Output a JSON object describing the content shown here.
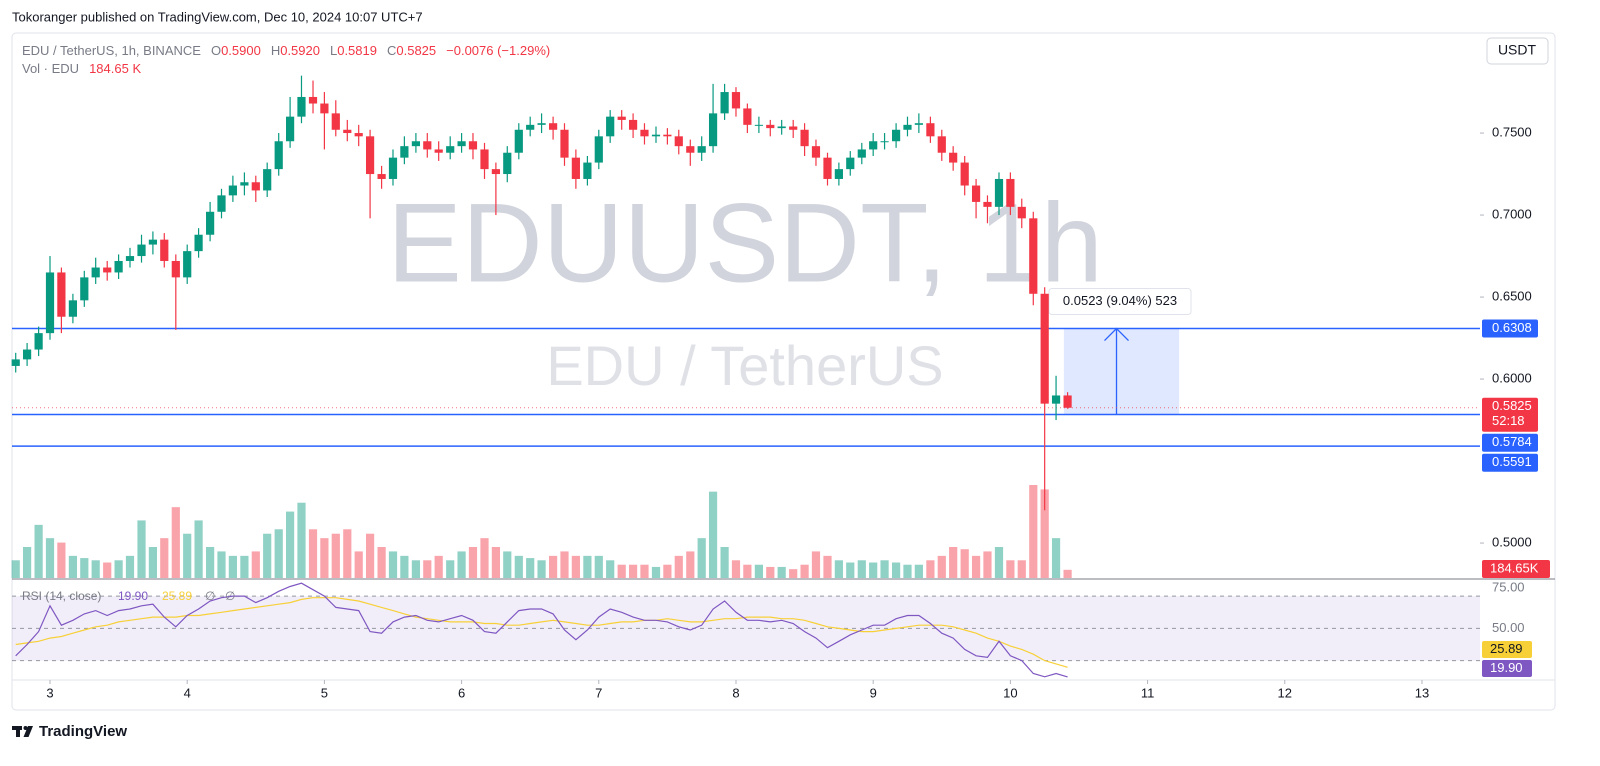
{
  "chart_data": {
    "type": "candlestick",
    "publisher_note": "Tokoranger published on TradingView.com, Dec 10, 2024 10:07 UTC+7",
    "brand": "TradingView",
    "currency_button": "USDT",
    "legend": {
      "symbol": "EDU / TetherUS, 1h, BINANCE",
      "items": [
        {
          "label": "O",
          "value": "0.5900"
        },
        {
          "label": "H",
          "value": "0.5920"
        },
        {
          "label": "L",
          "value": "0.5819"
        },
        {
          "label": "C",
          "value": "0.5825"
        }
      ],
      "change": "−0.0076 (−1.29%)"
    },
    "volume_legend": {
      "label": "Vol · EDU",
      "value": "184.65 K"
    },
    "watermark": {
      "title": "EDUUSDT, 1h",
      "subtitle": "EDU / TetherUS"
    },
    "x": [
      2.75,
      2.833,
      2.917,
      3,
      3.083,
      3.167,
      3.25,
      3.333,
      3.417,
      3.5,
      3.583,
      3.667,
      3.75,
      3.833,
      3.917,
      4,
      4.083,
      4.167,
      4.25,
      4.333,
      4.417,
      4.5,
      4.583,
      4.667,
      4.75,
      4.833,
      4.917,
      5,
      5.083,
      5.167,
      5.25,
      5.333,
      5.417,
      5.5,
      5.583,
      5.667,
      5.75,
      5.833,
      5.917,
      6,
      6.083,
      6.167,
      6.25,
      6.333,
      6.417,
      6.5,
      6.583,
      6.667,
      6.75,
      6.833,
      6.917,
      7,
      7.083,
      7.167,
      7.25,
      7.333,
      7.417,
      7.5,
      7.583,
      7.667,
      7.75,
      7.833,
      7.917,
      8,
      8.083,
      8.167,
      8.25,
      8.333,
      8.417,
      8.5,
      8.583,
      8.667,
      8.75,
      8.833,
      8.917,
      9,
      9.083,
      9.167,
      9.25,
      9.333,
      9.417,
      9.5,
      9.583,
      9.667,
      9.75,
      9.833,
      9.917,
      10,
      10.083,
      10.167,
      10.25,
      10.333,
      10.417
    ],
    "open": [
      0.608,
      0.612,
      0.618,
      0.628,
      0.665,
      0.638,
      0.648,
      0.662,
      0.668,
      0.665,
      0.672,
      0.675,
      0.682,
      0.685,
      0.672,
      0.662,
      0.678,
      0.688,
      0.702,
      0.712,
      0.718,
      0.72,
      0.715,
      0.728,
      0.745,
      0.76,
      0.772,
      0.768,
      0.762,
      0.752,
      0.75,
      0.748,
      0.725,
      0.722,
      0.735,
      0.742,
      0.745,
      0.74,
      0.738,
      0.742,
      0.745,
      0.74,
      0.728,
      0.725,
      0.738,
      0.752,
      0.755,
      0.756,
      0.752,
      0.735,
      0.722,
      0.732,
      0.748,
      0.76,
      0.758,
      0.752,
      0.748,
      0.749,
      0.748,
      0.742,
      0.738,
      0.742,
      0.762,
      0.775,
      0.765,
      0.755,
      0.755,
      0.753,
      0.754,
      0.752,
      0.742,
      0.735,
      0.722,
      0.728,
      0.735,
      0.74,
      0.745,
      0.745,
      0.752,
      0.755,
      0.756,
      0.748,
      0.738,
      0.732,
      0.718,
      0.708,
      0.705,
      0.722,
      0.705,
      0.698,
      0.652,
      0.585,
      0.59
    ],
    "high": [
      0.616,
      0.622,
      0.632,
      0.675,
      0.668,
      0.652,
      0.666,
      0.674,
      0.672,
      0.676,
      0.68,
      0.688,
      0.69,
      0.689,
      0.676,
      0.682,
      0.692,
      0.708,
      0.716,
      0.724,
      0.726,
      0.724,
      0.732,
      0.75,
      0.772,
      0.785,
      0.782,
      0.775,
      0.77,
      0.758,
      0.755,
      0.752,
      0.73,
      0.74,
      0.748,
      0.75,
      0.75,
      0.745,
      0.748,
      0.75,
      0.75,
      0.744,
      0.732,
      0.742,
      0.756,
      0.76,
      0.762,
      0.76,
      0.756,
      0.74,
      0.736,
      0.752,
      0.764,
      0.764,
      0.762,
      0.756,
      0.754,
      0.753,
      0.752,
      0.746,
      0.748,
      0.78,
      0.78,
      0.778,
      0.768,
      0.76,
      0.758,
      0.758,
      0.758,
      0.756,
      0.746,
      0.738,
      0.732,
      0.739,
      0.744,
      0.75,
      0.75,
      0.756,
      0.76,
      0.762,
      0.76,
      0.752,
      0.742,
      0.736,
      0.722,
      0.712,
      0.726,
      0.726,
      0.71,
      0.702,
      0.656,
      0.602,
      0.592
    ],
    "low": [
      0.604,
      0.608,
      0.614,
      0.624,
      0.628,
      0.634,
      0.644,
      0.658,
      0.66,
      0.661,
      0.668,
      0.671,
      0.676,
      0.668,
      0.63,
      0.658,
      0.674,
      0.684,
      0.698,
      0.708,
      0.712,
      0.708,
      0.711,
      0.724,
      0.741,
      0.756,
      0.762,
      0.74,
      0.748,
      0.745,
      0.742,
      0.698,
      0.716,
      0.718,
      0.731,
      0.738,
      0.735,
      0.733,
      0.734,
      0.738,
      0.734,
      0.722,
      0.7,
      0.72,
      0.734,
      0.748,
      0.75,
      0.746,
      0.73,
      0.716,
      0.718,
      0.728,
      0.744,
      0.752,
      0.747,
      0.743,
      0.744,
      0.743,
      0.737,
      0.73,
      0.733,
      0.738,
      0.758,
      0.76,
      0.75,
      0.75,
      0.748,
      0.749,
      0.747,
      0.736,
      0.73,
      0.718,
      0.718,
      0.724,
      0.731,
      0.736,
      0.74,
      0.741,
      0.748,
      0.75,
      0.744,
      0.733,
      0.727,
      0.712,
      0.698,
      0.695,
      0.7,
      0.7,
      0.692,
      0.645,
      0.52,
      0.575,
      0.5819
    ],
    "close": [
      0.612,
      0.618,
      0.628,
      0.665,
      0.638,
      0.648,
      0.662,
      0.668,
      0.665,
      0.672,
      0.675,
      0.682,
      0.685,
      0.672,
      0.662,
      0.678,
      0.688,
      0.702,
      0.712,
      0.718,
      0.72,
      0.715,
      0.728,
      0.745,
      0.76,
      0.772,
      0.768,
      0.762,
      0.752,
      0.75,
      0.748,
      0.725,
      0.722,
      0.735,
      0.742,
      0.745,
      0.74,
      0.738,
      0.742,
      0.745,
      0.74,
      0.728,
      0.725,
      0.738,
      0.752,
      0.755,
      0.756,
      0.752,
      0.735,
      0.722,
      0.732,
      0.748,
      0.76,
      0.758,
      0.752,
      0.748,
      0.749,
      0.748,
      0.742,
      0.738,
      0.742,
      0.762,
      0.775,
      0.765,
      0.755,
      0.755,
      0.753,
      0.754,
      0.752,
      0.742,
      0.735,
      0.722,
      0.728,
      0.735,
      0.74,
      0.745,
      0.745,
      0.752,
      0.755,
      0.756,
      0.748,
      0.738,
      0.732,
      0.718,
      0.708,
      0.705,
      0.722,
      0.705,
      0.698,
      0.652,
      0.585,
      0.59,
      0.5825
    ],
    "up_color": "#089981",
    "down_color": "#f23645",
    "volume": [
      400,
      700,
      1200,
      900,
      800,
      500,
      450,
      400,
      350,
      400,
      500,
      1300,
      700,
      900,
      1600,
      1000,
      1300,
      700,
      600,
      500,
      500,
      600,
      1000,
      1100,
      1500,
      1700,
      1100,
      900,
      1000,
      1100,
      600,
      1000,
      700,
      600,
      500,
      400,
      400,
      500,
      400,
      600,
      700,
      900,
      700,
      600,
      500,
      450,
      400,
      500,
      600,
      500,
      500,
      500,
      400,
      300,
      300,
      300,
      250,
      300,
      500,
      600,
      900,
      1950,
      700,
      400,
      300,
      300,
      250,
      250,
      200,
      300,
      600,
      500,
      400,
      350,
      400,
      350,
      400,
      350,
      300,
      300,
      400,
      500,
      700,
      650,
      500,
      600,
      700,
      400,
      400,
      2100,
      2000,
      900,
      184.65
    ],
    "xlim": [
      2.723,
      13.423
    ],
    "xticks": [
      3,
      4,
      5,
      6,
      7,
      8,
      9,
      10,
      11,
      12,
      13
    ],
    "ylim": [
      0.4787,
      0.811
    ],
    "yticks": [
      {
        "value": 0.75,
        "label": "0.7500"
      },
      {
        "value": 0.7,
        "label": "0.7000"
      },
      {
        "value": 0.65,
        "label": "0.6500"
      },
      {
        "value": 0.6,
        "label": "0.6000"
      },
      {
        "value": 0.5,
        "label": "0.5000"
      }
    ],
    "grid": false,
    "levels": [
      {
        "value": 0.6308,
        "label": "0.6308"
      },
      {
        "value": 0.5784,
        "label": "0.5784"
      },
      {
        "value": 0.5591,
        "label": "0.5591"
      }
    ],
    "level_color": "#2962ff",
    "last_price": {
      "value": 0.5825,
      "label": "0.5825",
      "countdown": "52:18"
    },
    "volume_label": "184.65K",
    "measure": {
      "from": 0.5784,
      "to": 0.6308,
      "x": [
        10.39,
        11.23
      ],
      "label": "0.0523 (9.04%) 523"
    },
    "rsi": {
      "legend": "RSI (14, close)",
      "value_label": "19.90",
      "ma_label": "25.89",
      "extras": [
        "∅",
        "∅"
      ],
      "values": [
        33,
        40,
        48,
        64,
        52,
        55,
        59,
        61,
        58,
        61,
        62,
        64,
        65,
        57,
        51,
        58,
        62,
        67,
        69,
        70,
        70,
        66,
        69,
        73,
        76,
        78,
        74,
        70,
        63,
        62,
        61,
        48,
        47,
        54,
        57,
        58,
        55,
        54,
        56,
        58,
        55,
        48,
        47,
        54,
        61,
        62,
        62,
        59,
        49,
        43,
        49,
        57,
        62,
        60,
        57,
        55,
        55,
        54,
        51,
        49,
        52,
        62,
        67,
        60,
        55,
        55,
        54,
        55,
        53,
        48,
        44,
        38,
        42,
        46,
        49,
        52,
        52,
        56,
        58,
        58,
        53,
        47,
        44,
        37,
        33,
        32,
        42,
        33,
        30,
        22,
        20,
        22,
        19.9
      ],
      "ma": [
        40,
        41,
        42,
        44,
        45,
        47,
        49,
        51,
        52,
        54,
        55,
        56,
        57,
        57,
        57,
        58,
        58,
        59,
        60,
        61,
        62,
        63,
        64,
        65,
        66,
        68,
        69,
        69,
        69,
        68,
        67,
        65,
        63,
        61,
        59,
        57,
        56,
        55,
        54,
        54,
        54,
        53,
        53,
        52,
        52,
        53,
        54,
        55,
        54,
        53,
        52,
        52,
        53,
        54,
        54,
        55,
        55,
        56,
        55,
        54,
        54,
        55,
        56,
        56,
        57,
        57,
        57,
        56,
        56,
        55,
        53,
        51,
        50,
        49,
        48,
        48,
        49,
        50,
        51,
        52,
        52,
        52,
        51,
        49,
        47,
        44,
        42,
        39,
        37,
        34,
        30,
        28,
        25.89
      ],
      "color": "#7e57c2",
      "ma_color": "#f7d038",
      "ylim": [
        18,
        80
      ],
      "yticks": [
        {
          "value": 75,
          "label": "75.00"
        },
        {
          "value": 50,
          "label": "50.00"
        }
      ],
      "levels": [
        70,
        50,
        30
      ]
    }
  }
}
